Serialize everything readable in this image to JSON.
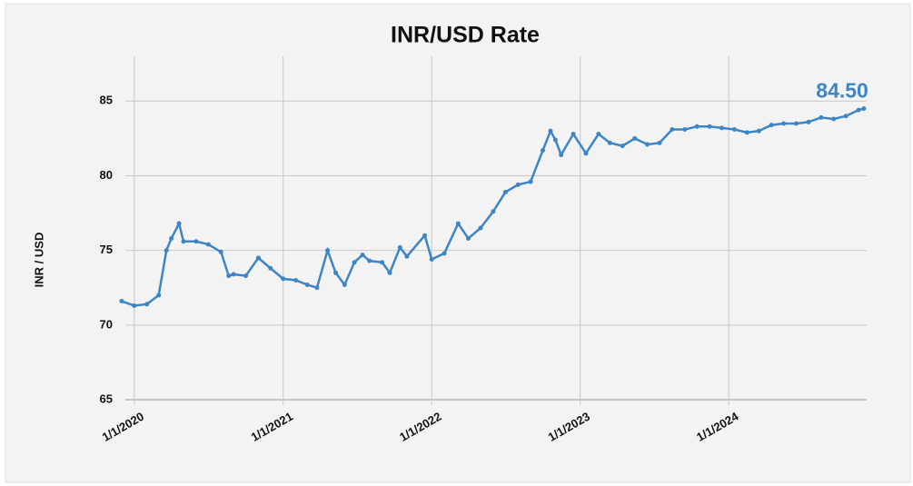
{
  "chart_data": {
    "type": "line",
    "title": "INR/USD Rate",
    "y_label": "INR / USD",
    "color": "#3d85c6",
    "grid": true,
    "x": [
      "2019-12-01",
      "2020-01-01",
      "2020-02-01",
      "2020-03-01",
      "2020-03-20",
      "2020-04-01",
      "2020-04-20",
      "2020-05-01",
      "2020-06-01",
      "2020-07-01",
      "2020-08-01",
      "2020-08-20",
      "2020-09-01",
      "2020-10-01",
      "2020-11-01",
      "2020-12-01",
      "2021-01-01",
      "2021-02-01",
      "2021-03-01",
      "2021-03-25",
      "2021-04-20",
      "2021-05-10",
      "2021-06-01",
      "2021-06-25",
      "2021-07-15",
      "2021-08-01",
      "2021-09-01",
      "2021-09-20",
      "2021-10-15",
      "2021-11-01",
      "2021-12-15",
      "2022-01-01",
      "2022-02-01",
      "2022-03-07",
      "2022-04-01",
      "2022-05-01",
      "2022-06-01",
      "2022-07-01",
      "2022-08-01",
      "2022-09-01",
      "2022-10-01",
      "2022-10-20",
      "2022-11-01",
      "2022-11-15",
      "2022-12-15",
      "2023-01-15",
      "2023-02-15",
      "2023-03-15",
      "2023-04-15",
      "2023-05-15",
      "2023-06-15",
      "2023-07-15",
      "2023-08-15",
      "2023-09-15",
      "2023-10-15",
      "2023-11-15",
      "2023-12-15",
      "2024-01-15",
      "2024-02-15",
      "2024-03-15",
      "2024-04-15",
      "2024-05-15",
      "2024-06-15",
      "2024-07-15",
      "2024-08-15",
      "2024-09-15",
      "2024-10-15",
      "2024-11-15",
      "2024-11-28"
    ],
    "values": [
      71.6,
      71.3,
      71.4,
      72.0,
      75.0,
      75.8,
      76.8,
      75.6,
      75.6,
      75.4,
      74.9,
      73.3,
      73.4,
      73.3,
      74.5,
      73.8,
      73.1,
      73.0,
      72.7,
      72.5,
      75.0,
      73.5,
      72.7,
      74.2,
      74.7,
      74.3,
      74.2,
      73.5,
      75.2,
      74.6,
      76.0,
      74.4,
      74.8,
      76.8,
      75.8,
      76.5,
      77.6,
      78.9,
      79.4,
      79.6,
      81.7,
      83.0,
      82.4,
      81.4,
      82.8,
      81.5,
      82.8,
      82.2,
      82.0,
      82.5,
      82.1,
      82.2,
      83.1,
      83.1,
      83.3,
      83.3,
      83.2,
      83.1,
      82.9,
      83.0,
      83.4,
      83.5,
      83.5,
      83.6,
      83.9,
      83.8,
      84.0,
      84.4,
      84.5
    ],
    "value_labels": [
      null,
      null,
      null,
      null,
      null,
      null,
      null,
      null,
      null,
      null,
      null,
      null,
      null,
      null,
      null,
      null,
      null,
      null,
      null,
      null,
      null,
      null,
      null,
      null,
      null,
      null,
      null,
      null,
      null,
      null,
      null,
      null,
      null,
      null,
      null,
      null,
      null,
      null,
      null,
      null,
      null,
      null,
      null,
      null,
      null,
      null,
      null,
      null,
      null,
      null,
      null,
      null,
      null,
      null,
      null,
      null,
      null,
      null,
      null,
      null,
      null,
      null,
      null,
      null,
      null,
      null,
      null,
      null,
      "84.50"
    ],
    "xlim": [
      "2019-11-20",
      "2024-12-05"
    ],
    "xticks": [
      {
        "value": "2020-01-01",
        "label": "1/1/2020"
      },
      {
        "value": "2021-01-01",
        "label": "1/1/2021"
      },
      {
        "value": "2022-01-01",
        "label": "1/1/2022"
      },
      {
        "value": "2023-01-01",
        "label": "1/1/2023"
      },
      {
        "value": "2024-01-01",
        "label": "1/1/2024"
      }
    ],
    "ylim": [
      65,
      88
    ],
    "yticks": [
      65,
      70,
      75,
      80,
      85
    ]
  }
}
